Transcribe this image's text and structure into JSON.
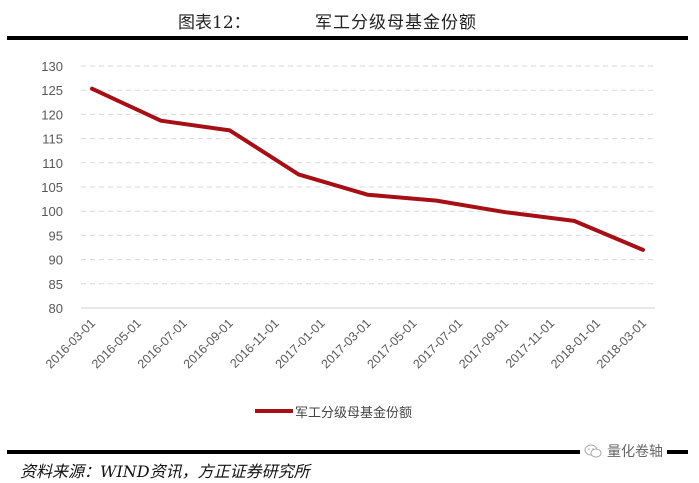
{
  "header": {
    "figure_label": "图表12：",
    "title": "军工分级母基金份额"
  },
  "footer": {
    "source": "资料来源：WIND资讯，方正证券研究所",
    "watermark": "量化卷轴",
    "watermark_icon": "wechat-icon"
  },
  "legend": {
    "label": "军工分级母基金份额",
    "color": "#a50f15"
  },
  "chart_data": {
    "type": "line",
    "title": "军工分级母基金份额",
    "xlabel": "",
    "ylabel": "",
    "ylim": [
      80,
      130
    ],
    "yticks": [
      80,
      85,
      90,
      95,
      100,
      105,
      110,
      115,
      120,
      125,
      130
    ],
    "grid": "horizontal dashed",
    "legend_position": "bottom",
    "categories": [
      "2016-03-01",
      "2016-05-01",
      "2016-07-01",
      "2016-09-01",
      "2016-11-01",
      "2017-01-01",
      "2017-03-01",
      "2017-05-01",
      "2017-07-01",
      "2017-09-01",
      "2017-11-01",
      "2018-01-01",
      "2018-03-01"
    ],
    "series": [
      {
        "name": "军工分级母基金份额",
        "color": "#a50f15",
        "x": [
          "2016-03-01",
          "2016-06-01",
          "2016-09-01",
          "2016-12-01",
          "2017-03-01",
          "2017-06-01",
          "2017-09-01",
          "2017-12-01",
          "2018-03-01"
        ],
        "values": [
          125.3,
          118.7,
          116.7,
          107.6,
          103.4,
          102.2,
          99.8,
          98.0,
          92.0
        ]
      }
    ]
  }
}
